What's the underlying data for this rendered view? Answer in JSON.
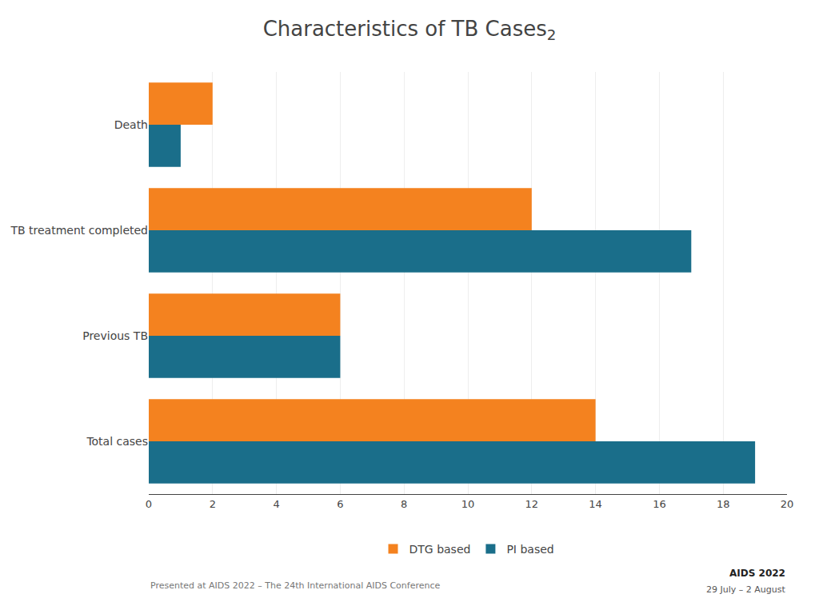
{
  "chart_data": {
    "type": "bar",
    "orientation": "horizontal",
    "title": "Characteristics of TB Cases",
    "annotations": [
      "2",
      "Presented at AIDS 2022 – The 24th International AIDS Conference",
      "AIDS 2022",
      "29 July – 2 August"
    ],
    "categories": [
      "Total cases",
      "Previous TB",
      "TB treatment completed",
      "Death"
    ],
    "series": [
      {
        "name": "DTG based",
        "color": "#f4821f",
        "values": [
          14,
          6,
          12,
          2
        ]
      },
      {
        "name": "PI based",
        "color": "#1a6e8a",
        "values": [
          19,
          6,
          17,
          1
        ]
      }
    ],
    "xlim": [
      0,
      20
    ],
    "xticks": [
      0,
      2,
      4,
      6,
      8,
      10,
      12,
      14,
      16,
      18,
      20
    ],
    "grid": true,
    "legend": "bottom"
  }
}
